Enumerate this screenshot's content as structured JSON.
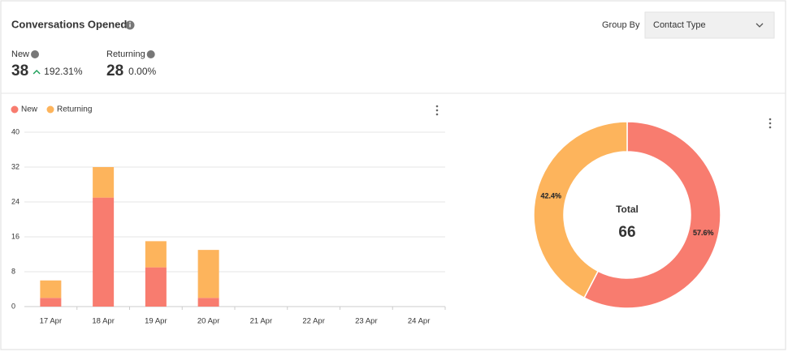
{
  "header": {
    "title": "Conversations Opened",
    "group_by_label": "Group By",
    "group_by_value": "Contact Type"
  },
  "kpis": [
    {
      "label": "New",
      "value": 38,
      "change": "192.31%"
    },
    {
      "label": "Returning",
      "value": 28,
      "change": "0.00%"
    }
  ],
  "chart_data": [
    {
      "type": "bar",
      "stacked": true,
      "categories": [
        "17 Apr",
        "18 Apr",
        "19 Apr",
        "20 Apr",
        "21 Apr",
        "22 Apr",
        "23 Apr",
        "24 Apr"
      ],
      "series": [
        {
          "name": "New",
          "color": "#f87c6f",
          "values": [
            2,
            25,
            9,
            2,
            0,
            0,
            0,
            0
          ]
        },
        {
          "name": "Returning",
          "color": "#fdb45c",
          "values": [
            4,
            7,
            6,
            11,
            0,
            0,
            0,
            0
          ]
        }
      ],
      "ylim": [
        0,
        40
      ],
      "yticks": [
        0,
        8,
        16,
        24,
        32,
        40
      ],
      "grid": true,
      "legend": "top-left"
    },
    {
      "type": "donut",
      "categories": [
        "New",
        "Returning"
      ],
      "values": [
        57.6,
        42.4
      ],
      "value_labels": [
        "57.6%",
        "42.4%"
      ],
      "colors": [
        "#f87c6f",
        "#fdb45c"
      ],
      "center_label": "Total",
      "center_value": 66
    }
  ]
}
